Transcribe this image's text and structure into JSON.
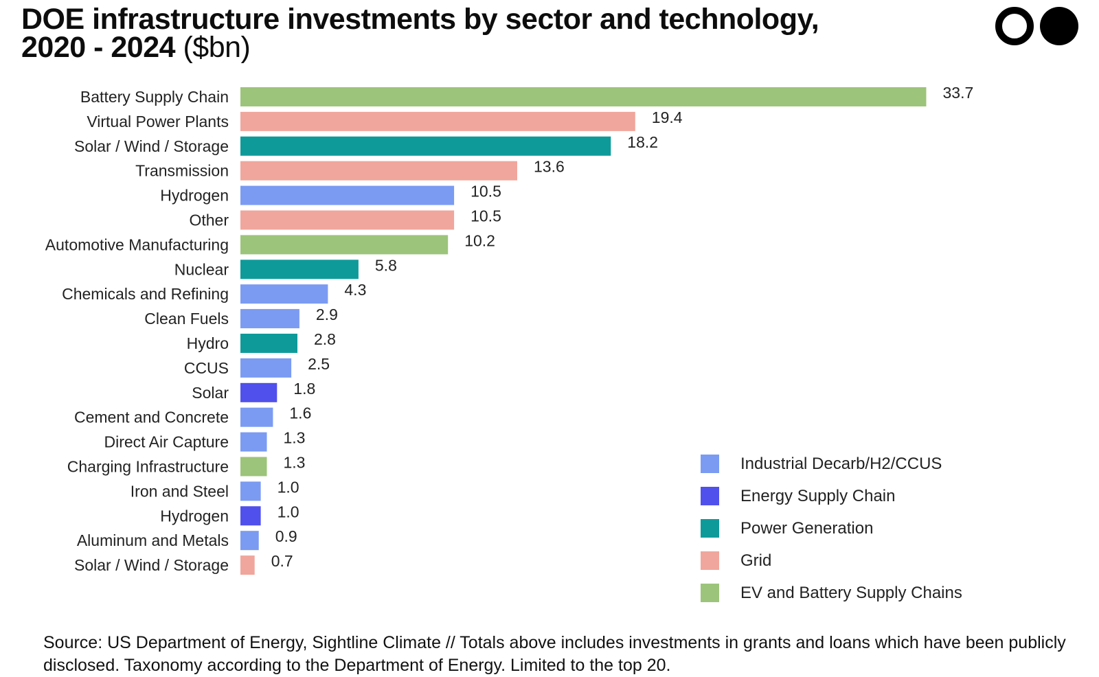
{
  "header": {
    "title_main": "DOE infrastructure investments by sector and technology,",
    "title_years": "2020 - 2024",
    "title_unit": "($bn)"
  },
  "logo": {
    "name": "brand-logo"
  },
  "colors": {
    "Industrial Decarb/H2/CCUS": "#7b9bf2",
    "Energy Supply Chain": "#5050ec",
    "Power Generation": "#0f9a9a",
    "Grid": "#f0a69c",
    "EV and Battery Supply Chains": "#9cc47a"
  },
  "chart_data": {
    "type": "bar",
    "orientation": "horizontal",
    "title": "DOE infrastructure investments by sector and technology, 2020 - 2024 ($bn)",
    "xlabel": "",
    "ylabel": "",
    "xlim": [
      0,
      34
    ],
    "grid": false,
    "legend_position": "bottom-right",
    "categories": [
      "Battery Supply Chain",
      "Virtual Power Plants",
      "Solar / Wind / Storage",
      "Transmission",
      "Hydrogen",
      "Other",
      "Automotive Manufacturing",
      "Nuclear",
      "Chemicals and Refining",
      "Clean Fuels",
      "Hydro",
      "CCUS",
      "Solar",
      "Cement and Concrete",
      "Direct Air Capture",
      "Charging Infrastructure",
      "Iron and Steel",
      "Hydrogen",
      "Aluminum and Metals",
      "Solar / Wind / Storage"
    ],
    "values": [
      33.7,
      19.4,
      18.2,
      13.6,
      10.5,
      10.5,
      10.2,
      5.8,
      4.3,
      2.9,
      2.8,
      2.5,
      1.8,
      1.6,
      1.3,
      1.3,
      1.0,
      1.0,
      0.9,
      0.7
    ],
    "value_labels": [
      "33.7",
      "19.4",
      "18.2",
      "13.6",
      "10.5",
      "10.5",
      "10.2",
      "5.8",
      "4.3",
      "2.9",
      "2.8",
      "2.5",
      "1.8",
      "1.6",
      "1.3",
      "1.3",
      "1.0",
      "1.0",
      "0.9",
      "0.7"
    ],
    "sectors": [
      "EV and Battery Supply Chains",
      "Grid",
      "Power Generation",
      "Grid",
      "Industrial Decarb/H2/CCUS",
      "Grid",
      "EV and Battery Supply Chains",
      "Power Generation",
      "Industrial Decarb/H2/CCUS",
      "Industrial Decarb/H2/CCUS",
      "Power Generation",
      "Industrial Decarb/H2/CCUS",
      "Energy Supply Chain",
      "Industrial Decarb/H2/CCUS",
      "Industrial Decarb/H2/CCUS",
      "EV and Battery Supply Chains",
      "Industrial Decarb/H2/CCUS",
      "Energy Supply Chain",
      "Industrial Decarb/H2/CCUS",
      "Grid"
    ],
    "legend": [
      "Industrial Decarb/H2/CCUS",
      "Energy Supply Chain",
      "Power Generation",
      "Grid",
      "EV and Battery Supply Chains"
    ]
  },
  "footer": {
    "source": "Source: US Department of Energy, Sightline Climate // Totals above includes investments in grants and loans which have been publicly disclosed. Taxonomy according to the Department of Energy. Limited to the top 20."
  }
}
